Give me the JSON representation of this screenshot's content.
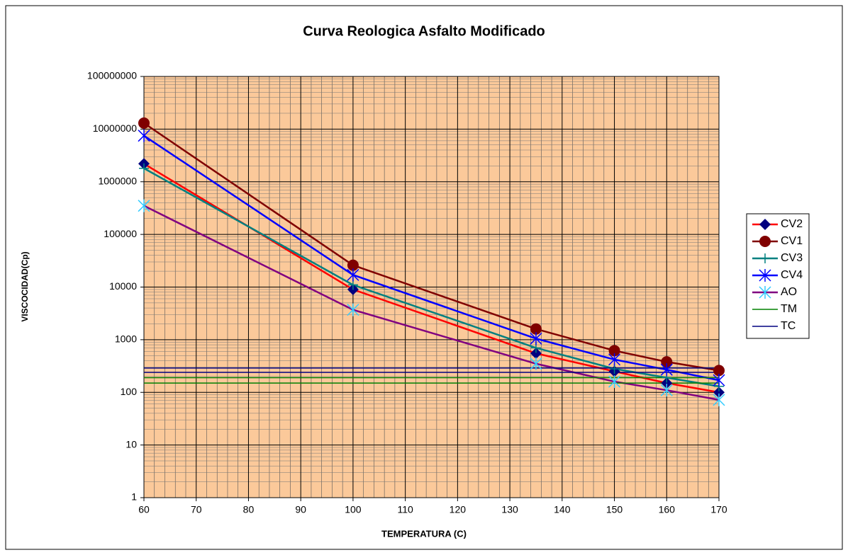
{
  "chart_data": {
    "type": "line",
    "title": "Curva Reologica Asfalto Modificado",
    "x_label": "TEMPERATURA (C)",
    "y_label": "VISCOCIDAD(Cp)",
    "x": [
      60,
      100,
      135,
      150,
      160,
      170
    ],
    "series": [
      {
        "name": "CV2",
        "color": "#ff0000",
        "marker": "diamond",
        "marker_color": "#000080",
        "values": [
          2200000,
          9000,
          550,
          250,
          150,
          100
        ]
      },
      {
        "name": "CV1",
        "color": "#800000",
        "marker": "circle",
        "marker_color": "#800000",
        "values": [
          13000000,
          26000,
          1600,
          620,
          380,
          260
        ]
      },
      {
        "name": "CV3",
        "color": "#008080",
        "marker": "plus",
        "marker_color": "#008080",
        "values": [
          1800000,
          11000,
          700,
          280,
          190,
          130
        ]
      },
      {
        "name": "CV4",
        "color": "#0000ff",
        "marker": "asterisk",
        "marker_color": "#0000ff",
        "values": [
          7500000,
          17000,
          1050,
          420,
          270,
          170
        ]
      },
      {
        "name": "AO",
        "color": "#800080",
        "marker": "asterisk",
        "marker_color": "#33ccff",
        "values": [
          350000,
          3700,
          350,
          160,
          110,
          72
        ]
      },
      {
        "name": "TM",
        "color": "#008000",
        "marker": "none",
        "levels": [
          190,
          150
        ]
      },
      {
        "name": "TC",
        "color": "#000080",
        "marker": "none",
        "levels": [
          290,
          240
        ]
      }
    ],
    "xlim": [
      60,
      170
    ],
    "xticks": [
      60,
      70,
      80,
      90,
      100,
      110,
      120,
      130,
      140,
      150,
      160,
      170
    ],
    "ylim": [
      1,
      100000000
    ],
    "yticks": [
      1,
      10,
      100,
      1000,
      10000,
      100000,
      1000000,
      10000000,
      100000000
    ],
    "log_y": true,
    "grid": true,
    "minor_grid": true,
    "background": "#fbc99a",
    "legend": "right"
  }
}
